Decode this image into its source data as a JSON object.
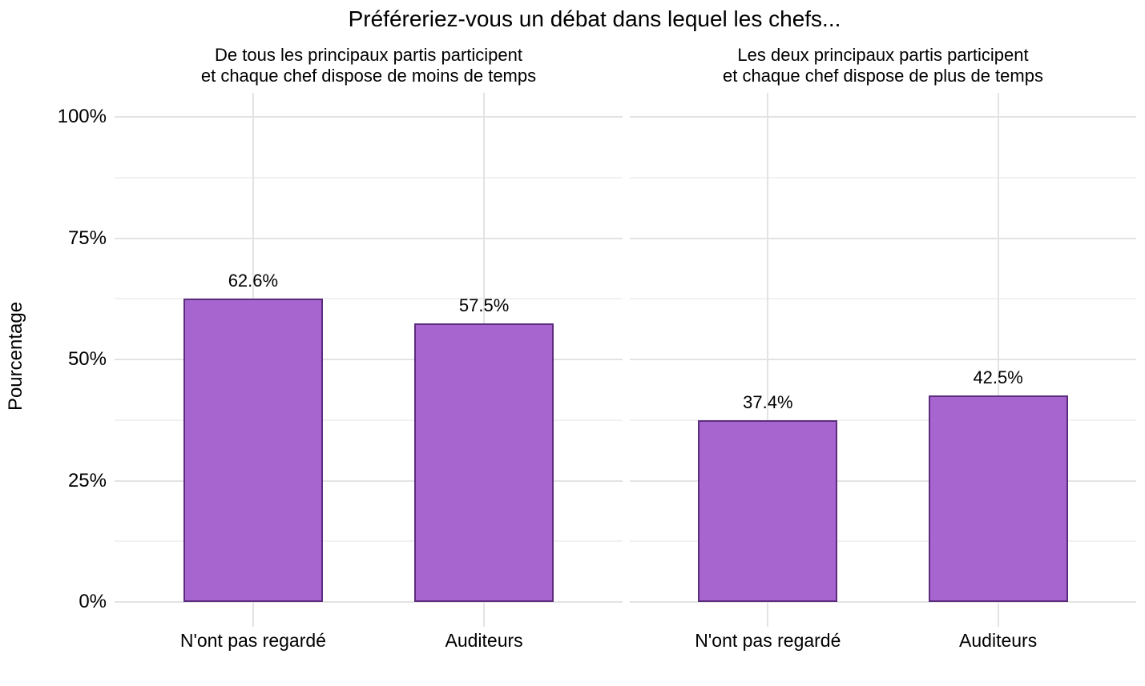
{
  "chart_data": {
    "type": "bar",
    "title": "Préféreriez-vous un débat dans lequel les chefs...",
    "ylabel": "Pourcentage",
    "xlabel": "",
    "ylim": [
      0,
      100
    ],
    "grid": true,
    "legend": false,
    "categories": [
      "N'ont pas regardé",
      "Auditeurs"
    ],
    "yticks": [
      {
        "value": 0,
        "label": "0%"
      },
      {
        "value": 25,
        "label": "25%"
      },
      {
        "value": 50,
        "label": "50%"
      },
      {
        "value": 75,
        "label": "75%"
      },
      {
        "value": 100,
        "label": "100%"
      }
    ],
    "minor_gridlines": [
      12.5,
      37.5,
      62.5,
      87.5
    ],
    "facets": [
      {
        "title_lines": [
          "De tous les principaux partis participent",
          "et chaque chef dispose de moins de temps"
        ],
        "values": [
          62.6,
          57.5
        ],
        "data_labels": [
          "62.6%",
          "57.5%"
        ]
      },
      {
        "title_lines": [
          "Les deux principaux partis participent",
          "et chaque chef dispose de plus de temps"
        ],
        "values": [
          37.4,
          42.5
        ],
        "data_labels": [
          "37.4%",
          "42.5%"
        ]
      }
    ],
    "colors": {
      "bar_fill": "#A665CF",
      "bar_border": "#5C2C7E",
      "grid_major": "#E3E3E3",
      "grid_minor": "#F1F1F1",
      "text": "#000000",
      "background": "#FFFFFF"
    }
  }
}
